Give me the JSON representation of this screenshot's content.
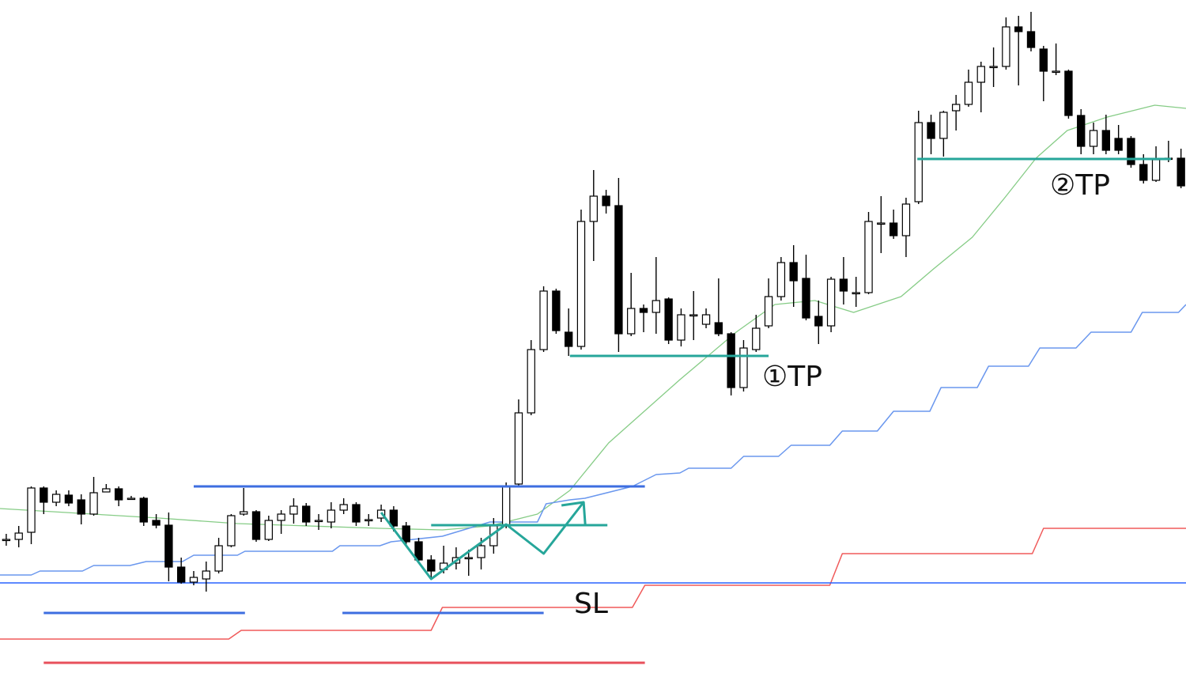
{
  "chart_data": {
    "type": "candlestick",
    "xlim": [
      -0.5,
      94.4
    ],
    "ylim": [
      0,
      88
    ],
    "up_color": "#ffffff",
    "down_color": "#000000",
    "open": [
      19.8,
      19.8,
      20.7,
      26.3,
      24.5,
      25.4,
      24.8,
      23.0,
      25.8,
      26.2,
      25.0,
      25.0,
      22.2,
      21.6,
      16.3,
      14.4,
      14.8,
      15.8,
      19.0,
      23.0,
      23.3,
      19.8,
      22.2,
      23.0,
      24.0,
      22.2,
      22.0,
      23.5,
      24.2,
      22.3,
      22.5,
      23.5,
      21.5,
      19.5,
      17.2,
      16.0,
      16.8,
      17.5,
      17.5,
      19.0,
      21.5,
      26.8,
      35.8,
      43.8,
      51.2,
      46.0,
      44.2,
      60.0,
      63.2,
      62.0,
      45.8,
      49.0,
      48.5,
      50.2,
      45.0,
      48.2,
      47.0,
      47.2,
      45.8,
      39.0,
      43.8,
      46.8,
      50.5,
      54.8,
      52.8,
      48.0,
      46.8,
      52.7,
      51.0,
      51.0,
      59.8,
      59.8,
      58.2,
      62.5,
      72.5,
      70.5,
      74.0,
      74.8,
      77.6,
      79.6,
      79.6,
      84.6,
      84.0,
      81.8,
      79.0,
      79.0,
      73.4,
      69.5,
      71.5,
      70.5,
      70.5,
      67.2,
      65.2,
      68.0,
      68.0
    ],
    "high": [
      20.5,
      21.5,
      26.5,
      26.5,
      26.0,
      26.0,
      25.5,
      27.7,
      26.8,
      26.5,
      25.3,
      25.2,
      23.0,
      23.2,
      17.5,
      15.8,
      17.0,
      20.0,
      23.0,
      26.3,
      23.5,
      22.8,
      23.5,
      25.0,
      24.4,
      23.0,
      24.5,
      25.0,
      24.5,
      23.0,
      24.2,
      24.0,
      22.0,
      20.0,
      17.8,
      19.0,
      18.8,
      18.5,
      20.0,
      22.5,
      27.0,
      37.5,
      45.0,
      51.8,
      51.5,
      49.0,
      61.5,
      66.5,
      64.0,
      65.5,
      53.5,
      49.5,
      55.5,
      50.4,
      49.0,
      51.2,
      49.0,
      52.8,
      46.0,
      45.0,
      48.2,
      52.8,
      55.5,
      57.0,
      55.8,
      50.0,
      53.0,
      55.5,
      53.0,
      61.2,
      63.2,
      61.5,
      63.0,
      74.0,
      73.5,
      74.0,
      76.0,
      79.2,
      80.2,
      82.0,
      85.8,
      86.0,
      86.5,
      82.2,
      82.5,
      79.2,
      74.2,
      72.5,
      73.5,
      72.2,
      70.8,
      68.5,
      69.5,
      70.2,
      69.2
    ],
    "low": [
      19.0,
      18.8,
      19.2,
      23.0,
      24.0,
      24.0,
      21.7,
      22.8,
      25.8,
      24.0,
      24.8,
      21.5,
      21.2,
      14.5,
      14.2,
      14.0,
      13.2,
      15.5,
      18.8,
      22.8,
      19.5,
      19.6,
      20.5,
      21.8,
      21.5,
      21.0,
      21.2,
      23.0,
      21.5,
      21.5,
      22.0,
      20.8,
      19.0,
      16.8,
      14.8,
      15.5,
      16.0,
      15.2,
      16.0,
      18.0,
      21.2,
      26.6,
      35.5,
      43.5,
      45.8,
      43.0,
      43.8,
      55.0,
      61.0,
      43.5,
      45.5,
      46.0,
      45.8,
      44.5,
      44.2,
      45.0,
      46.5,
      45.5,
      38.0,
      38.5,
      43.5,
      46.5,
      50.0,
      49.2,
      47.5,
      44.5,
      46.0,
      49.5,
      49.2,
      50.8,
      56.0,
      57.8,
      55.5,
      62.2,
      68.5,
      68.2,
      71.5,
      74.5,
      73.8,
      77.0,
      79.2,
      77.2,
      81.5,
      75.2,
      78.5,
      73.0,
      68.5,
      68.5,
      68.5,
      68.5,
      66.8,
      64.8,
      65.0,
      67.5,
      64.2
    ],
    "close": [
      19.8,
      20.6,
      26.3,
      24.5,
      25.5,
      24.4,
      23.0,
      25.7,
      26.2,
      24.8,
      25.0,
      22.0,
      21.6,
      16.3,
      14.4,
      15.0,
      15.8,
      19.0,
      22.8,
      23.3,
      19.8,
      22.2,
      23.0,
      24.0,
      22.0,
      22.2,
      23.5,
      24.2,
      22.0,
      22.3,
      23.5,
      21.5,
      19.5,
      17.2,
      15.8,
      16.8,
      17.5,
      17.5,
      19.0,
      21.5,
      26.5,
      35.8,
      43.8,
      51.2,
      46.2,
      44.2,
      60.0,
      63.2,
      62.0,
      45.8,
      49.0,
      48.5,
      50.0,
      45.0,
      48.2,
      48.2,
      48.2,
      45.8,
      39.0,
      44.0,
      46.5,
      50.5,
      54.8,
      52.5,
      47.8,
      46.8,
      52.7,
      51.2,
      51.0,
      60.0,
      59.8,
      58.2,
      62.2,
      72.5,
      70.5,
      73.8,
      74.8,
      77.6,
      79.6,
      79.6,
      84.6,
      84.0,
      82.0,
      79.0,
      79.0,
      73.4,
      69.5,
      71.5,
      69.0,
      69.0,
      67.2,
      65.2,
      67.8,
      68.0,
      64.5
    ],
    "series": [
      {
        "color": "#86cc86",
        "width": 1.3,
        "x": [
          -0.5,
          12.2,
          18.5,
          29.9,
          34.9,
          38.7,
          42.5,
          45.1,
          48.2,
          53.9,
          58.4,
          61.5,
          64.7,
          67.8,
          71.6,
          74.2,
          77.3,
          79.9,
          82.4,
          84.9,
          88.1,
          91.9,
          94.4
        ],
        "values": [
          23.7,
          22.5,
          21.8,
          21.2,
          21.0,
          21.5,
          23.0,
          26.0,
          32.0,
          40.0,
          46.0,
          49.5,
          50.0,
          48.5,
          50.5,
          54.0,
          58.0,
          63.0,
          68.0,
          71.5,
          73.2,
          74.7,
          74.3
        ]
      },
      {
        "color": "#6a97ee",
        "width": 1.5,
        "x": [
          -0.5,
          2.0,
          2.7,
          6.1,
          7.0,
          9.9,
          11.2,
          14.1,
          15.0,
          18.5,
          19.1,
          26.1,
          26.7,
          29.9,
          30.8,
          34.9,
          38.7,
          42.5,
          43.2,
          45.1,
          46.3,
          50.1,
          52.0,
          53.9,
          54.6,
          58.0,
          59.0,
          61.8,
          62.8,
          65.9,
          66.9,
          69.7,
          71.0,
          73.9,
          74.8,
          77.7,
          78.6,
          81.8,
          82.7,
          85.6,
          86.8,
          90.0,
          90.9,
          93.8,
          94.4
        ],
        "values": [
          15.3,
          15.3,
          15.8,
          15.8,
          16.5,
          16.5,
          17.0,
          17.0,
          17.8,
          17.8,
          18.3,
          18.3,
          19.0,
          19.0,
          19.5,
          20.2,
          22.0,
          22.0,
          24.3,
          24.8,
          25.0,
          26.5,
          28.0,
          28.2,
          28.8,
          28.8,
          30.3,
          30.3,
          31.7,
          31.7,
          33.5,
          33.5,
          36.0,
          36.0,
          39.0,
          39.0,
          41.7,
          41.7,
          44.0,
          44.0,
          46.0,
          46.0,
          48.5,
          48.5,
          49.5
        ]
      },
      {
        "color": "#f05a5a",
        "width": 1.5,
        "x": [
          -0.5,
          17.8,
          18.8,
          34.0,
          34.9,
          50.1,
          51.1,
          65.9,
          66.9,
          82.1,
          83.0,
          94.4
        ],
        "values": [
          7.2,
          7.2,
          8.3,
          8.3,
          11.2,
          11.2,
          14.0,
          14.0,
          18.0,
          18.0,
          21.2,
          21.2
        ]
      },
      {
        "color": "#2962ff",
        "width": 1.5,
        "x": [
          -0.5,
          94.4
        ],
        "values": [
          14.3,
          14.3
        ]
      },
      {
        "color": "#3d6ee0",
        "width": 3,
        "x": [
          15.0,
          51.1
        ],
        "values": [
          26.5,
          26.5
        ]
      },
      {
        "color": "#3d6ee0",
        "width": 3,
        "x": [
          3.0,
          19.1
        ],
        "values": [
          10.5,
          10.5
        ]
      },
      {
        "color": "#3d6ee0",
        "width": 3,
        "x": [
          26.9,
          43.0
        ],
        "values": [
          10.5,
          10.5
        ]
      },
      {
        "color": "#e8505b",
        "width": 3,
        "x": [
          3.0,
          51.1
        ],
        "values": [
          4.2,
          4.2
        ]
      },
      {
        "color": "#26a69a",
        "width": 3,
        "x": [
          45.1,
          61.0
        ],
        "values": [
          43.0,
          43.0
        ]
      },
      {
        "color": "#26a69a",
        "width": 3,
        "x": [
          72.9,
          93.2
        ],
        "values": [
          67.9,
          67.9
        ]
      },
      {
        "color": "#26a69a",
        "width": 3,
        "x": [
          34.0,
          48.1
        ],
        "values": [
          21.6,
          21.6
        ]
      },
      {
        "color": "#26a69a",
        "width": 3,
        "x": [
          30.0,
          34.0,
          40.0,
          43.0,
          46.2
        ],
        "values": [
          23.2,
          14.8,
          21.7,
          18.0,
          24.5
        ]
      }
    ],
    "annotations": [
      "①TP",
      "②TP",
      "SL"
    ]
  }
}
